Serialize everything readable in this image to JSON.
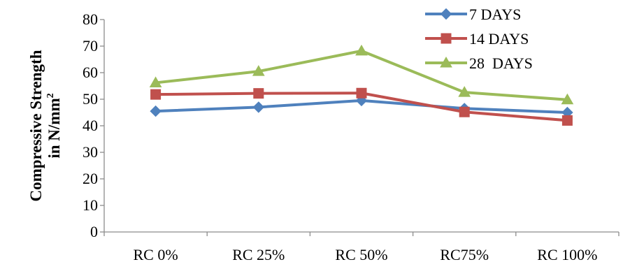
{
  "chart_data": {
    "type": "line",
    "categories": [
      "RC 0%",
      "RC 25%",
      "RC 50%",
      "RC75%",
      "RC 100%"
    ],
    "series": [
      {
        "name": "7 DAYS",
        "values": [
          45.5,
          47.0,
          49.5,
          46.5,
          45.0
        ],
        "color": "#4F81BD",
        "marker": "diamond"
      },
      {
        "name": "14 DAYS",
        "values": [
          51.8,
          52.2,
          52.3,
          45.2,
          42.0
        ],
        "color": "#C0504D",
        "marker": "square"
      },
      {
        "name": "28  DAYS",
        "values": [
          56.2,
          60.5,
          68.2,
          52.6,
          49.8
        ],
        "color": "#9BBB59",
        "marker": "triangle"
      }
    ],
    "ylabel_line1": "Compressive Strength",
    "ylabel_line2": "in N/mm",
    "ylabel_sup": "2",
    "ylim": [
      0,
      80
    ],
    "ytick_step": 10,
    "ytick_labels": [
      "0",
      "10",
      "20",
      "30",
      "40",
      "50",
      "60",
      "70",
      "80"
    ],
    "grid": false,
    "legend_position": "top-right"
  }
}
